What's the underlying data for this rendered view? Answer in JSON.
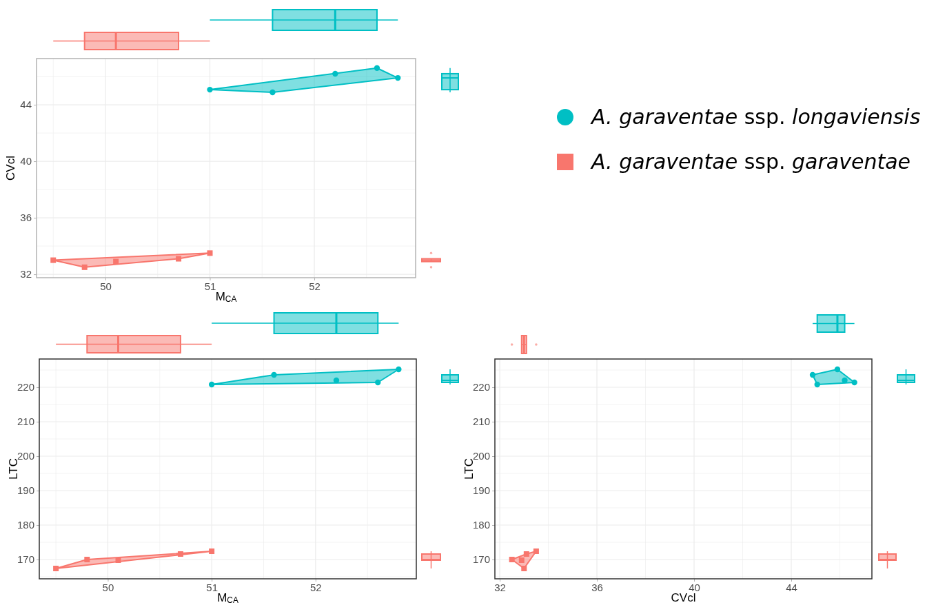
{
  "chart_data": [
    {
      "type": "scatter",
      "xlabel": "M$_{CA}$",
      "ylabel": "CVcl",
      "xlim": [
        49.34,
        52.97
      ],
      "ylim": [
        31.76,
        47.27
      ],
      "xticks": [
        50,
        51,
        52
      ],
      "yticks": [
        32,
        36,
        40,
        44
      ],
      "grid": true,
      "legend": "right",
      "series": [
        {
          "name": "A. garaventae ssp. longaviensis",
          "color": "#00bfc4",
          "marker": "circle",
          "x": [
            51.0,
            51.6,
            52.2,
            52.6,
            52.8
          ],
          "values": [
            45.07,
            44.88,
            46.2,
            46.6,
            45.9
          ]
        },
        {
          "name": "A. garaventae ssp. garaventae",
          "color": "#f8766d",
          "marker": "square",
          "x": [
            49.5,
            49.8,
            50.1,
            50.7,
            51.0
          ],
          "values": [
            33.0,
            32.5,
            32.9,
            33.1,
            33.5
          ]
        }
      ]
    },
    {
      "type": "scatter",
      "xlabel": "M$_{CA}$",
      "ylabel": "LTC",
      "xlim": [
        49.34,
        52.97
      ],
      "ylim": [
        164.4,
        228.2
      ],
      "xticks": [
        50,
        51,
        52
      ],
      "yticks": [
        170,
        180,
        190,
        200,
        210,
        220
      ],
      "grid": true,
      "series": [
        {
          "color": "#00bfc4",
          "marker": "circle",
          "x": [
            51.0,
            51.6,
            52.2,
            52.6,
            52.8
          ],
          "values": [
            220.8,
            223.6,
            222,
            221.4,
            225.2
          ]
        },
        {
          "color": "#f8766d",
          "marker": "square",
          "x": [
            49.5,
            49.8,
            50.1,
            50.7,
            51.0
          ],
          "values": [
            167.4,
            170,
            169.8,
            171.6,
            172.4
          ]
        }
      ]
    },
    {
      "type": "scatter",
      "xlabel": "CVcl",
      "ylabel": "LTC",
      "xlim": [
        31.8,
        47.32
      ],
      "ylim": [
        164.4,
        228.2
      ],
      "xticks": [
        32,
        36,
        40,
        44
      ],
      "yticks": [
        170,
        180,
        190,
        200,
        210,
        220
      ],
      "grid": true,
      "series": [
        {
          "color": "#00bfc4",
          "marker": "circle",
          "x": [
            45.07,
            44.88,
            46.2,
            46.6,
            45.9
          ],
          "values": [
            220.8,
            223.6,
            222,
            221.4,
            225.2
          ]
        },
        {
          "color": "#f8766d",
          "marker": "square",
          "x": [
            33.0,
            32.5,
            32.9,
            33.1,
            33.5
          ],
          "values": [
            167.4,
            170,
            169.8,
            171.6,
            172.4
          ]
        }
      ]
    }
  ]
}
